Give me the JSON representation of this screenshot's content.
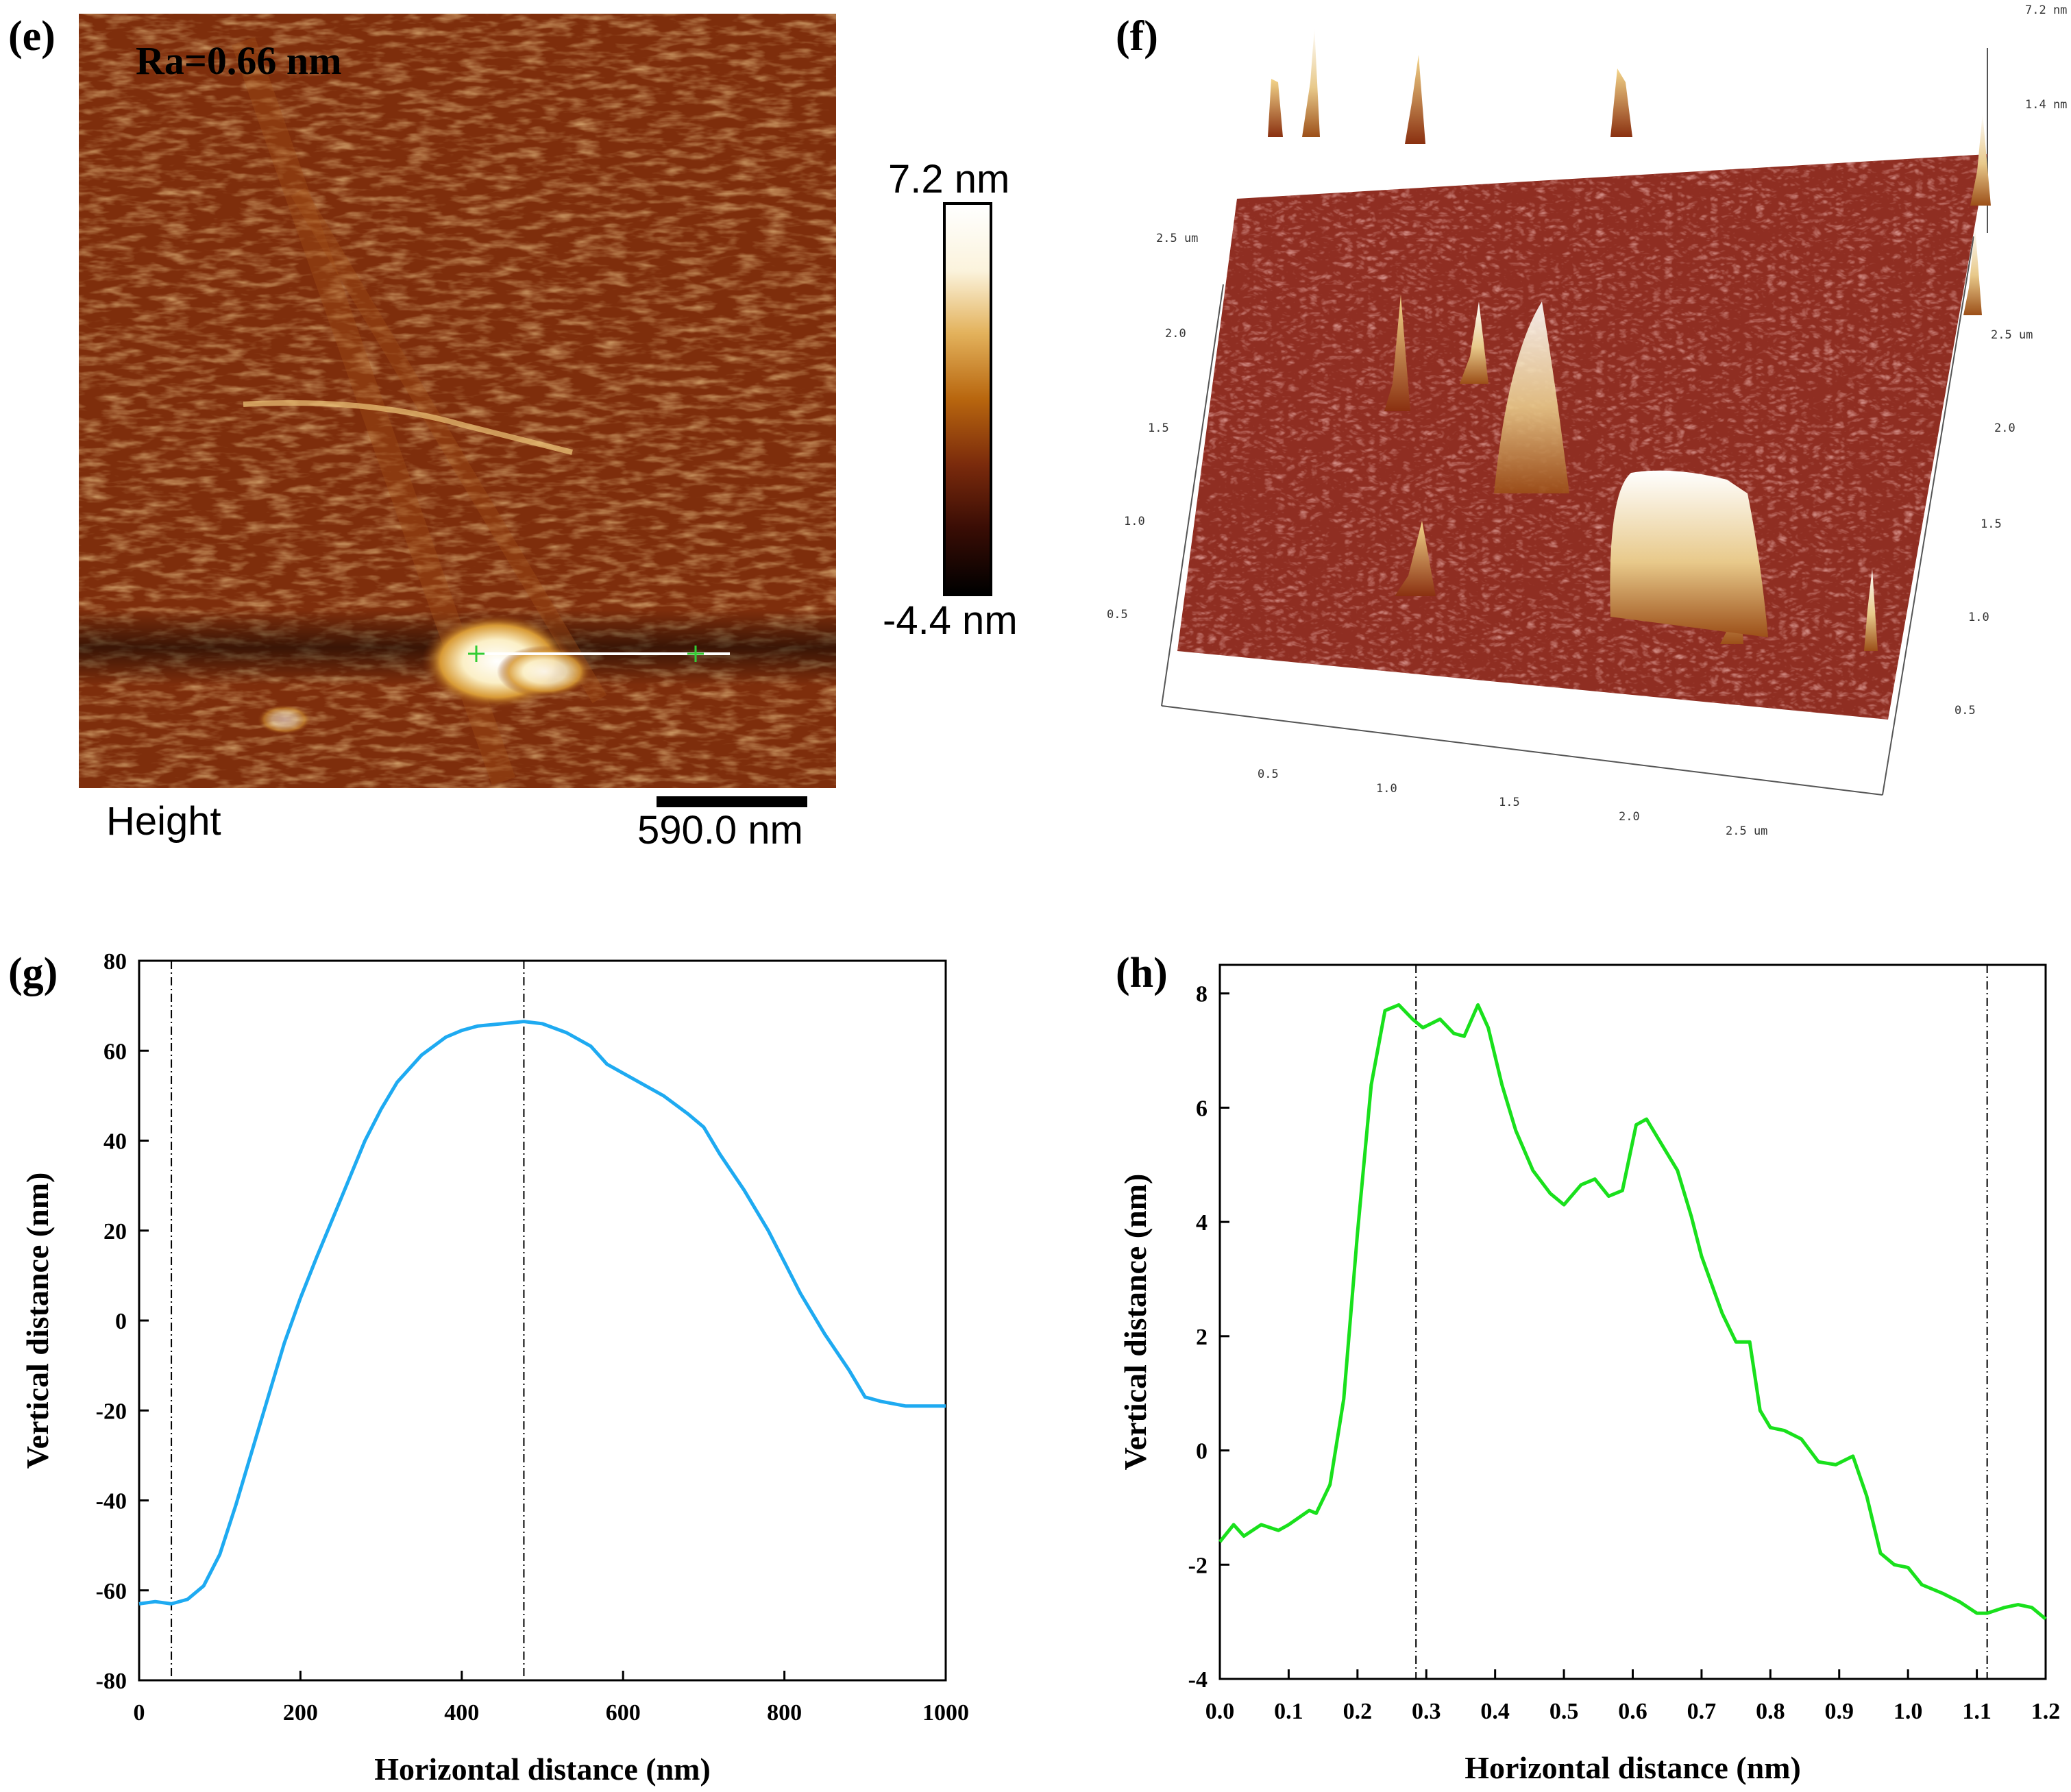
{
  "panels": {
    "e": {
      "label": "(e)",
      "ra_text": "Ra=0.66 nm",
      "ra_color": "#e8101a",
      "channel": "Height",
      "scale_bar_text": "590.0 nm",
      "colorbar_max": "7.2 nm",
      "colorbar_min": "-4.4 nm",
      "colormap": [
        "#000000",
        "#3a0d05",
        "#7a2a0c",
        "#b8660e",
        "#e3b25c",
        "#fbf3dc",
        "#ffffff"
      ]
    },
    "f": {
      "label": "(f)",
      "z_max": "7.2 nm",
      "z_mid": "1.4 nm",
      "left_axis_ticks": [
        "2.5 um",
        "2.0",
        "1.5",
        "1.0",
        "0.5"
      ],
      "right_axis_ticks": [
        "2.5 um",
        "2.0",
        "1.5",
        "1.0",
        "0.5"
      ],
      "front_axis_ticks": [
        "0.5",
        "1.0",
        "1.5",
        "2.0",
        "2.5 um"
      ]
    },
    "g": {
      "label": "(g)"
    },
    "h": {
      "label": "(h)"
    }
  },
  "chart_data": [
    {
      "type": "line",
      "panel": "g",
      "xlabel": "Horizontal distance (nm)",
      "ylabel": "Vertical distance (nm)",
      "xlim": [
        0,
        1000
      ],
      "ylim": [
        -80,
        80
      ],
      "xticks": [
        0,
        200,
        400,
        600,
        800,
        1000
      ],
      "yticks": [
        -80,
        -60,
        -40,
        -20,
        0,
        20,
        40,
        60,
        80
      ],
      "xtick_labels": [
        "0",
        "200",
        "400",
        "600",
        "800",
        "1000"
      ],
      "ytick_labels": [
        "-80",
        "-60",
        "-40",
        "-20",
        "0",
        "20",
        "40",
        "60",
        "80"
      ],
      "color": "#1eaaf1",
      "vlines": [
        40,
        477
      ],
      "x": [
        0,
        20,
        40,
        60,
        80,
        100,
        120,
        150,
        180,
        200,
        220,
        250,
        280,
        300,
        320,
        350,
        380,
        400,
        420,
        450,
        477,
        500,
        530,
        560,
        580,
        600,
        620,
        650,
        680,
        700,
        720,
        750,
        780,
        800,
        820,
        850,
        880,
        900,
        920,
        950,
        980,
        1000
      ],
      "y": [
        -63,
        -62.5,
        -63,
        -62,
        -59,
        -52,
        -41,
        -23,
        -5,
        5,
        14,
        27,
        40,
        47,
        53,
        59,
        63,
        64.5,
        65.5,
        66,
        66.5,
        66,
        64,
        61,
        57,
        55,
        53,
        50,
        46,
        43,
        37,
        29,
        20,
        13,
        6,
        -3,
        -11,
        -17,
        -18,
        -19,
        -19,
        -19
      ]
    },
    {
      "type": "line",
      "panel": "h",
      "xlabel": "Horizontal distance (nm)",
      "ylabel": "Vertical distance (nm)",
      "xlim": [
        0,
        1.2
      ],
      "ylim": [
        -4,
        8.5
      ],
      "xticks": [
        0,
        0.1,
        0.2,
        0.3,
        0.4,
        0.5,
        0.6,
        0.7,
        0.8,
        0.9,
        1.0,
        1.1,
        1.2
      ],
      "yticks": [
        -4,
        -2,
        0,
        2,
        4,
        6,
        8
      ],
      "xtick_labels": [
        "0.0",
        "0.1",
        "0.2",
        "0.3",
        "0.4",
        "0.5",
        "0.6",
        "0.7",
        "0.8",
        "0.9",
        "1.0",
        "1.1",
        "1.2"
      ],
      "ytick_labels": [
        "-4",
        "-2",
        "0",
        "2",
        "4",
        "6",
        "8"
      ],
      "color": "#19e01c",
      "vlines": [
        0.285,
        1.115
      ],
      "x": [
        0.0,
        0.02,
        0.035,
        0.06,
        0.085,
        0.1,
        0.13,
        0.14,
        0.16,
        0.18,
        0.2,
        0.22,
        0.24,
        0.26,
        0.28,
        0.295,
        0.32,
        0.34,
        0.355,
        0.375,
        0.39,
        0.41,
        0.43,
        0.455,
        0.48,
        0.5,
        0.525,
        0.545,
        0.565,
        0.585,
        0.605,
        0.62,
        0.645,
        0.665,
        0.685,
        0.7,
        0.73,
        0.75,
        0.77,
        0.785,
        0.8,
        0.82,
        0.845,
        0.87,
        0.895,
        0.92,
        0.94,
        0.96,
        0.98,
        1.0,
        1.02,
        1.05,
        1.075,
        1.1,
        1.115,
        1.14,
        1.16,
        1.18,
        1.2
      ],
      "y": [
        -1.6,
        -1.3,
        -1.5,
        -1.3,
        -1.4,
        -1.3,
        -1.05,
        -1.1,
        -0.6,
        0.9,
        3.8,
        6.4,
        7.7,
        7.8,
        7.55,
        7.4,
        7.55,
        7.3,
        7.25,
        7.8,
        7.4,
        6.4,
        5.6,
        4.9,
        4.5,
        4.3,
        4.65,
        4.75,
        4.45,
        4.55,
        5.7,
        5.8,
        5.3,
        4.9,
        4.1,
        3.4,
        2.4,
        1.9,
        1.9,
        0.7,
        0.4,
        0.35,
        0.2,
        -0.2,
        -0.25,
        -0.1,
        -0.8,
        -1.8,
        -2.0,
        -2.05,
        -2.35,
        -2.5,
        -2.65,
        -2.85,
        -2.85,
        -2.75,
        -2.7,
        -2.75,
        -2.95
      ]
    }
  ]
}
